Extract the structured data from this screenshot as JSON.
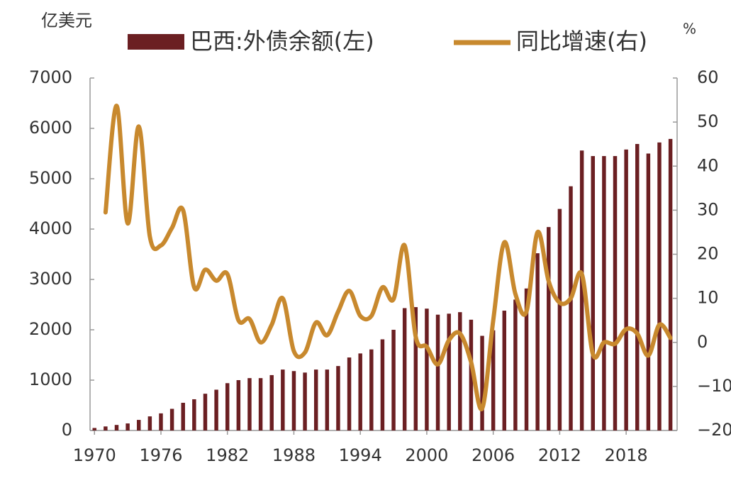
{
  "chart_data": {
    "type": "bar-line",
    "y_label": "亿美元",
    "y2_label": "%",
    "x": [
      1970,
      1971,
      1972,
      1973,
      1974,
      1975,
      1976,
      1977,
      1978,
      1979,
      1980,
      1981,
      1982,
      1983,
      1984,
      1985,
      1986,
      1987,
      1988,
      1989,
      1990,
      1991,
      1992,
      1993,
      1994,
      1995,
      1996,
      1997,
      1998,
      1999,
      2000,
      2001,
      2002,
      2003,
      2004,
      2005,
      2006,
      2007,
      2008,
      2009,
      2010,
      2011,
      2012,
      2013,
      2014,
      2015,
      2016,
      2017,
      2018,
      2019,
      2020,
      2021,
      2022
    ],
    "xlim": [
      1969.6,
      2022.6
    ],
    "xticks": [
      1970,
      1976,
      1982,
      1988,
      1994,
      2000,
      2006,
      2012,
      2018
    ],
    "ylim": [
      0,
      7000
    ],
    "yticks": [
      0,
      1000,
      2000,
      3000,
      4000,
      5000,
      6000,
      7000
    ],
    "y2lim": [
      -20,
      60
    ],
    "y2ticks": [
      {
        "value": -20,
        "label": "−20"
      },
      {
        "value": -10,
        "label": "−10"
      },
      0,
      10,
      20,
      30,
      40,
      50,
      60
    ],
    "series": [
      {
        "name": "巴西:外债余额(左)",
        "type": "bar",
        "color": "#6b1f22",
        "values": [
          50,
          80,
          110,
          140,
          210,
          280,
          340,
          430,
          550,
          620,
          730,
          810,
          940,
          1000,
          1040,
          1040,
          1100,
          1210,
          1180,
          1150,
          1210,
          1210,
          1280,
          1450,
          1530,
          1610,
          1810,
          2000,
          2430,
          2450,
          2420,
          2300,
          2320,
          2350,
          2200,
          1880,
          1990,
          2380,
          2600,
          2820,
          3520,
          4040,
          4400,
          4850,
          5560,
          5450,
          5450,
          5450,
          5580,
          5690,
          5500,
          5720,
          5790
        ]
      },
      {
        "name": "同比增速(右)",
        "type": "line",
        "axis": "y2",
        "color": "#c8892e",
        "values": [
          null,
          29.5,
          53.7,
          27,
          49,
          24,
          22,
          26,
          30,
          12.5,
          16.5,
          14,
          15.5,
          5,
          5.3,
          0,
          4,
          10,
          -2,
          -2.3,
          4.5,
          1.6,
          7,
          11.7,
          6,
          6,
          12.5,
          9.8,
          22,
          1.3,
          -1,
          -5,
          0.5,
          2,
          -4.5,
          -15,
          5,
          22.7,
          11,
          7,
          25,
          13.9,
          9,
          10,
          15.5,
          -2.7,
          0,
          -0.3,
          3,
          2,
          -3,
          4,
          1
        ]
      }
    ]
  }
}
